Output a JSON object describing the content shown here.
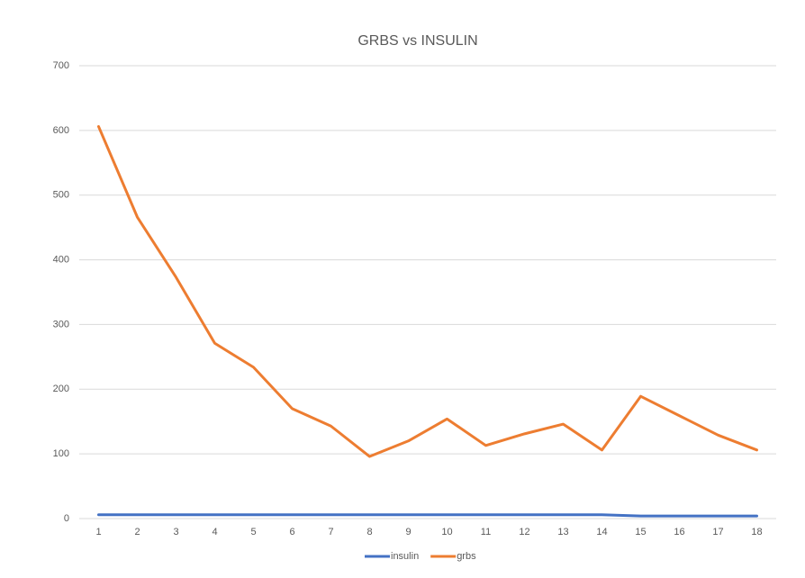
{
  "chart_data": {
    "type": "line",
    "title": "GRBS vs INSULIN",
    "categories": [
      "1",
      "2",
      "3",
      "4",
      "5",
      "6",
      "7",
      "8",
      "9",
      "10",
      "11",
      "12",
      "13",
      "14",
      "15",
      "16",
      "17",
      "18"
    ],
    "series": [
      {
        "name": "insulin",
        "color": "#4472c4",
        "values": [
          6,
          6,
          6,
          6,
          6,
          6,
          6,
          6,
          6,
          6,
          6,
          6,
          6,
          6,
          4,
          4,
          4,
          4
        ]
      },
      {
        "name": "grbs",
        "color": "#ed7d31",
        "values": [
          606,
          466,
          373,
          271,
          234,
          170,
          143,
          96,
          120,
          154,
          113,
          131,
          146,
          106,
          189,
          159,
          129,
          106
        ]
      }
    ],
    "ylim": [
      0,
      700
    ],
    "yticks": [
      0,
      100,
      200,
      300,
      400,
      500,
      600,
      700
    ],
    "grid": true,
    "legend": "bottom"
  }
}
